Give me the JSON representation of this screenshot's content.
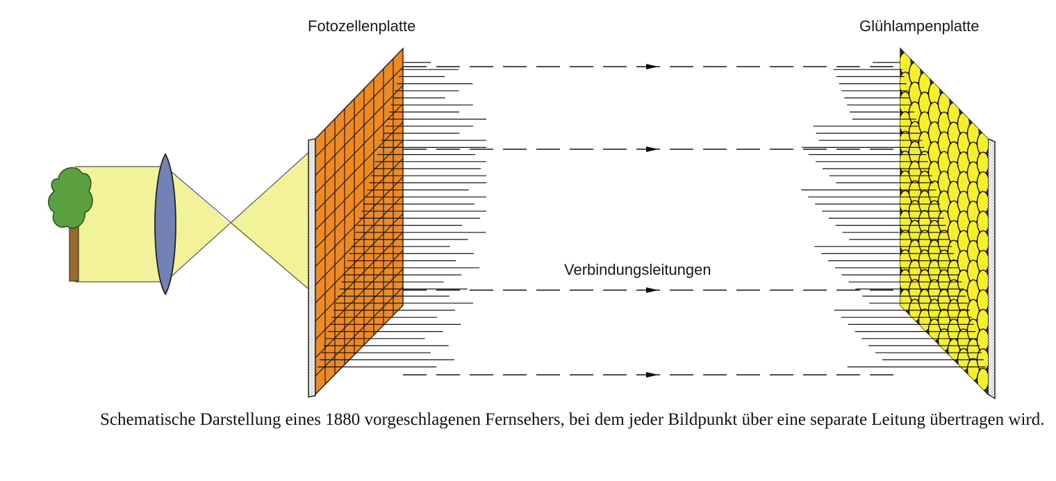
{
  "labels": {
    "photocell_plate": "Fotozellenplatte",
    "lamp_plate": "Glühlampenplatte",
    "wires": "Verbindungsleitungen"
  },
  "caption": "Schematische Darstellung eines 1880 vorgeschlagenen Fernsehers, bei dem jeder Bildpunkt über eine separate Leitung übertragen wird.",
  "colors": {
    "tree_foliage": "#5aa041",
    "tree_trunk": "#9a6a2c",
    "light_beam": "#f2f29a",
    "lens": "#7382b5",
    "photocell": "#f08a1e",
    "lamp": "#f5f02a",
    "grid_line": "#222222"
  },
  "icons": {
    "object": "tree-icon",
    "optics": "lens-icon"
  }
}
